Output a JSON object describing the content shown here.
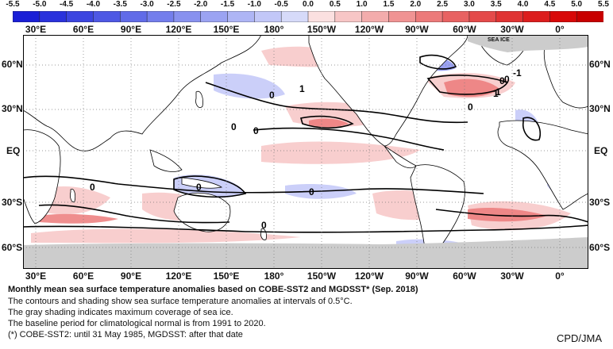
{
  "colorbar": {
    "labels": [
      "-5.5",
      "-5.0",
      "-4.5",
      "-4.0",
      "-3.5",
      "-3.0",
      "-2.5",
      "-2.0",
      "-1.5",
      "-1.0",
      "-0.5",
      "0.0",
      "0.5",
      "1.0",
      "1.5",
      "2.0",
      "2.5",
      "3.0",
      "3.5",
      "4.0",
      "4.5",
      "5.0",
      "5.5"
    ],
    "colors": [
      "#1a1fd6",
      "#2a32dc",
      "#3c45e0",
      "#4e58e4",
      "#616be8",
      "#747eec",
      "#8891ef",
      "#9ba3f2",
      "#aeb5f5",
      "#c2c7f8",
      "#d6daf9",
      "#fbe0e0",
      "#f7c6c6",
      "#f3acac",
      "#f09393",
      "#ec7a7a",
      "#e86262",
      "#e44a4a",
      "#e03333",
      "#dc1d1d",
      "#d80808",
      "#c80000"
    ]
  },
  "axes": {
    "lon_labels": [
      "30°E",
      "60°E",
      "90°E",
      "120°E",
      "150°E",
      "180°",
      "150°W",
      "120°W",
      "90°W",
      "60°W",
      "30°W",
      "0°"
    ],
    "lat_labels_left": [
      "60°N",
      "30°N",
      "EQ",
      "30°S",
      "60°S"
    ],
    "lat_labels_right": [
      "60°N",
      "30°N",
      "EQ",
      "30°S",
      "60°S"
    ]
  },
  "map": {
    "sea_ice_label": "SEA ICE",
    "contour_labels": [
      "0",
      "0",
      "0",
      "0",
      "1",
      "1",
      "0",
      "-1",
      "0",
      "1",
      "0",
      "0",
      "0",
      "0"
    ]
  },
  "caption": {
    "title": "Monthly mean sea surface temperature anomalies based on COBE-SST2 and MGDSST* (Sep. 2018)",
    "line1": "The contours and shading show sea surface temperature anomalies at intervals of 0.5°C.",
    "line2": "The gray shading indicates maximum coverage of sea ice.",
    "line3": "The baseline period for climatological normal is from 1991 to 2020.",
    "line4": "(*) COBE-SST2: until 31 May 1985, MGDSST: after that date"
  },
  "credit": "CPD/JMA"
}
